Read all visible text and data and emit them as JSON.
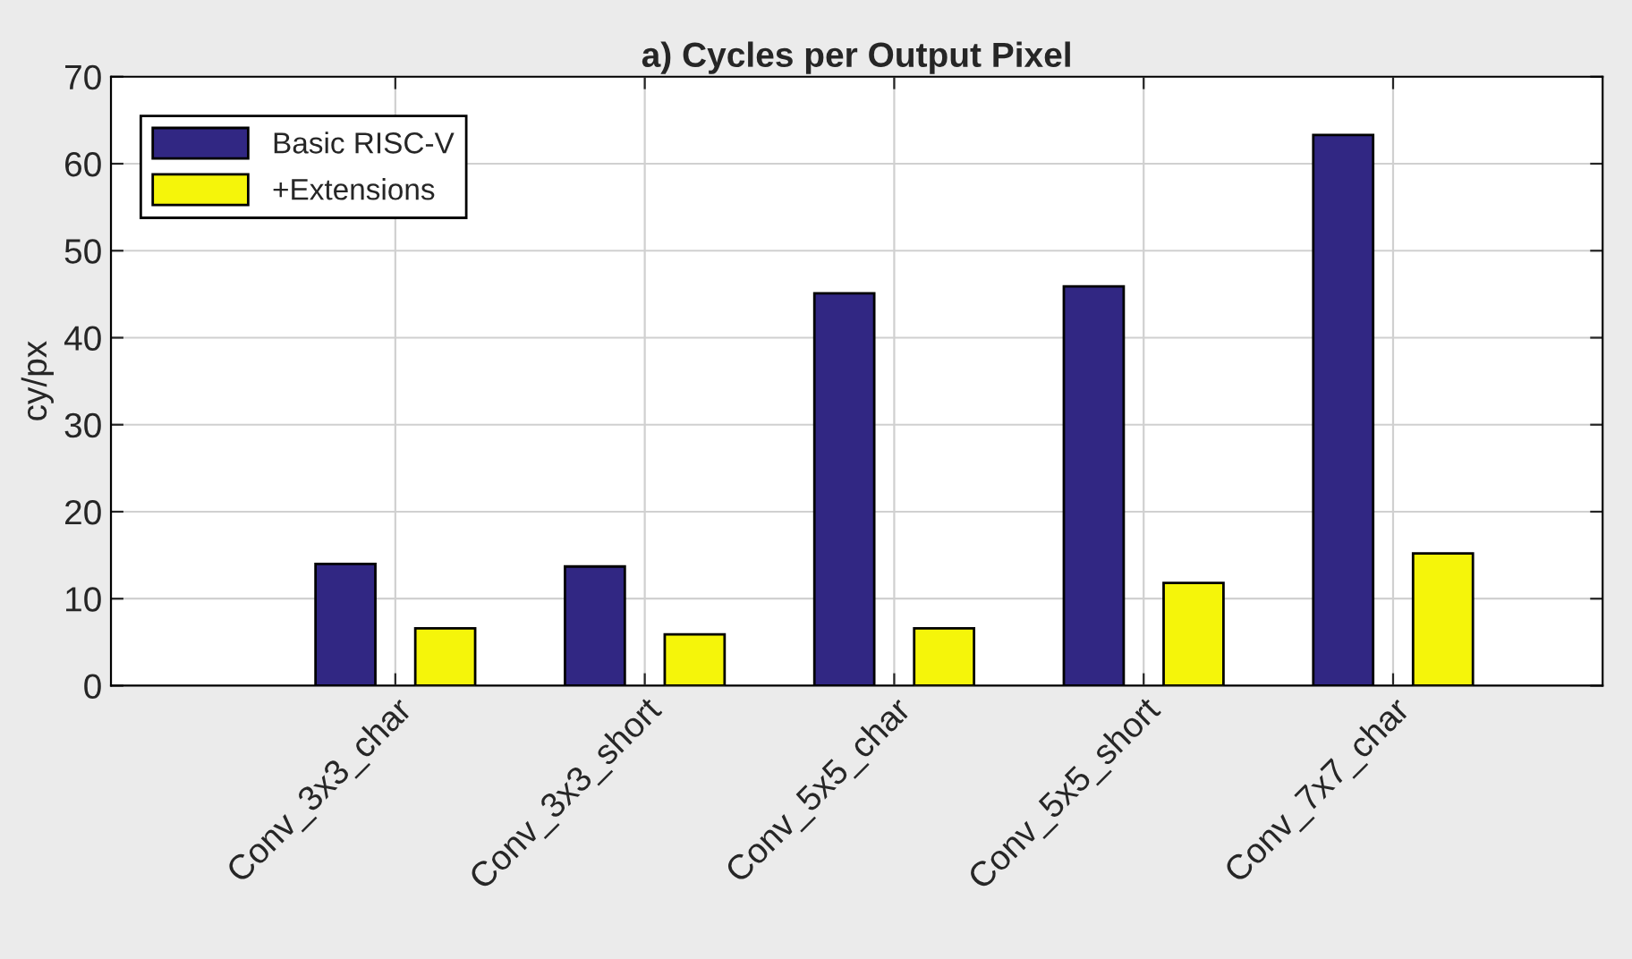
{
  "chart_data": {
    "type": "bar",
    "title": "a) Cycles per Output Pixel",
    "ylabel": "cy/px",
    "categories": [
      "Conv_3x3_char",
      "Conv_3x3_short",
      "Conv_5x5_char",
      "Conv_5x5_short",
      "Conv_7x7_char"
    ],
    "series": [
      {
        "name": "Basic RISC-V",
        "color": "#312783",
        "values": [
          14.0,
          13.7,
          45.1,
          45.9,
          63.3
        ]
      },
      {
        "name": "+Extensions",
        "color": "#f5f50a",
        "values": [
          6.6,
          5.9,
          6.6,
          11.8,
          15.2
        ]
      }
    ],
    "ylim": [
      0,
      70
    ],
    "yticks": [
      0,
      10,
      20,
      30,
      40,
      50,
      60,
      70
    ],
    "grid": true,
    "legend": "top left"
  }
}
